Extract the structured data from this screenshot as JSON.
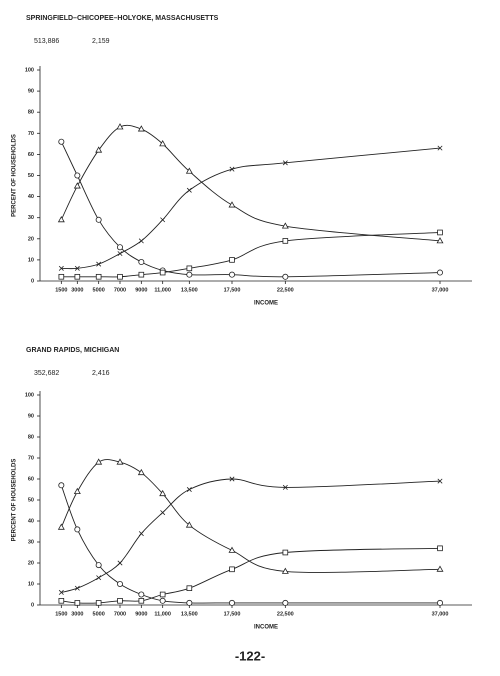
{
  "chart_data": [
    {
      "type": "line",
      "title": "SPRINGFIELD–CHICOPEE–HOLYOKE, MASSACHUSETTS",
      "annotations": [
        "513,886",
        "2,159"
      ],
      "x_label": "INCOME",
      "y_label": "PERCENT OF HOUSEHOLDS",
      "x": [
        1500,
        3000,
        5000,
        7000,
        9000,
        11000,
        13500,
        17500,
        22500,
        37000
      ],
      "xlim": [
        -500,
        40000
      ],
      "xticks": [
        1500,
        3000,
        5000,
        7000,
        9000,
        {
          "value": 11000,
          "label": "11,000"
        },
        {
          "value": 13500,
          "label": "13,500"
        },
        {
          "value": 17500,
          "label": "17,500"
        },
        {
          "value": 22500,
          "label": "22,500"
        },
        {
          "value": 37000,
          "label": "37,000"
        }
      ],
      "ylim": [
        0,
        100
      ],
      "yticks": [
        0,
        10,
        20,
        30,
        40,
        50,
        60,
        70,
        80,
        90,
        100
      ],
      "series": [
        {
          "marker": "circle",
          "color": "#222",
          "values": [
            66,
            50,
            29,
            16,
            9,
            5,
            3,
            3,
            2,
            4
          ]
        },
        {
          "marker": "triangle",
          "color": "#222",
          "values": [
            29,
            45,
            62,
            73,
            72,
            65,
            52,
            36,
            26,
            19
          ]
        },
        {
          "marker": "x",
          "color": "#222",
          "values": [
            6,
            6,
            8,
            13,
            19,
            29,
            43,
            53,
            56,
            63
          ]
        },
        {
          "marker": "square",
          "color": "#222",
          "values": [
            2,
            2,
            2,
            2,
            3,
            4,
            6,
            10,
            19,
            23
          ]
        }
      ]
    },
    {
      "type": "line",
      "title": "GRAND RAPIDS, MICHIGAN",
      "annotations": [
        "352,682",
        "2,416"
      ],
      "x_label": "INCOME",
      "y_label": "PERCENT OF HOUSEHOLDS",
      "x": [
        1500,
        3000,
        5000,
        7000,
        9000,
        11000,
        13500,
        17500,
        22500,
        37000
      ],
      "xlim": [
        -500,
        40000
      ],
      "xticks": [
        1500,
        3000,
        5000,
        7000,
        9000,
        {
          "value": 11000,
          "label": "11,000"
        },
        {
          "value": 13500,
          "label": "13,500"
        },
        {
          "value": 17500,
          "label": "17,500"
        },
        {
          "value": 22500,
          "label": "22,500"
        },
        {
          "value": 37000,
          "label": "37,000"
        }
      ],
      "ylim": [
        0,
        100
      ],
      "yticks": [
        0,
        10,
        20,
        30,
        40,
        50,
        60,
        70,
        80,
        90,
        100
      ],
      "series": [
        {
          "marker": "circle",
          "color": "#222",
          "values": [
            57,
            36,
            19,
            10,
            5,
            2,
            1,
            1,
            1,
            1
          ]
        },
        {
          "marker": "triangle",
          "color": "#222",
          "values": [
            37,
            54,
            68,
            68,
            63,
            53,
            38,
            26,
            16,
            17
          ]
        },
        {
          "marker": "x",
          "color": "#222",
          "values": [
            6,
            8,
            13,
            20,
            34,
            44,
            55,
            60,
            56,
            59
          ]
        },
        {
          "marker": "square",
          "color": "#222",
          "values": [
            2,
            1,
            1,
            2,
            2,
            5,
            8,
            17,
            25,
            27
          ]
        }
      ]
    }
  ],
  "page_number": "-122-"
}
